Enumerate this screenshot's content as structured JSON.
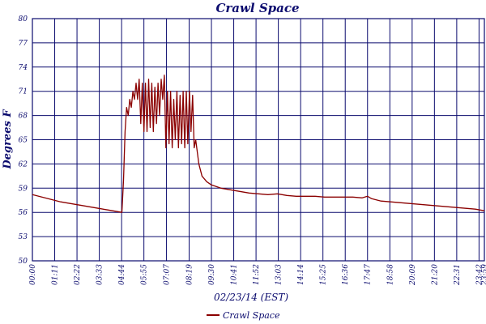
{
  "chart_data": {
    "type": "line",
    "title": "Crawl Space",
    "xlabel": "02/23/14 (EST)",
    "ylabel": "Degrees F",
    "ylim": [
      50,
      80
    ],
    "y_ticks": [
      50,
      53,
      56,
      59,
      62,
      65,
      68,
      71,
      74,
      77,
      80
    ],
    "x_ticks": [
      "00:00",
      "01:11",
      "02:22",
      "03:33",
      "04:44",
      "05:55",
      "07:07",
      "08:19",
      "09:30",
      "10:41",
      "11:52",
      "13:03",
      "14:14",
      "15:25",
      "16:36",
      "17:47",
      "18:58",
      "20:09",
      "21:20",
      "22:31",
      "23:42",
      "23:59"
    ],
    "grid": true,
    "legend": "bottom-center",
    "colors": {
      "series": "#8b0000",
      "grid": "#0b0b6e",
      "text": "#0b0b6e"
    },
    "series": [
      {
        "name": "Crawl Space",
        "points": [
          [
            "00:00",
            58.2
          ],
          [
            "00:30",
            57.9
          ],
          [
            "01:00",
            57.6
          ],
          [
            "01:30",
            57.3
          ],
          [
            "02:00",
            57.1
          ],
          [
            "02:30",
            56.9
          ],
          [
            "03:00",
            56.7
          ],
          [
            "03:30",
            56.5
          ],
          [
            "04:00",
            56.3
          ],
          [
            "04:30",
            56.1
          ],
          [
            "04:45",
            56.0
          ],
          [
            "04:50",
            60.0
          ],
          [
            "04:55",
            66.0
          ],
          [
            "05:00",
            69.0
          ],
          [
            "05:05",
            68.0
          ],
          [
            "05:10",
            70.0
          ],
          [
            "05:15",
            69.0
          ],
          [
            "05:20",
            71.0
          ],
          [
            "05:25",
            70.0
          ],
          [
            "05:30",
            72.0
          ],
          [
            "05:35",
            70.0
          ],
          [
            "05:40",
            72.5
          ],
          [
            "05:45",
            67.0
          ],
          [
            "05:50",
            72.0
          ],
          [
            "05:55",
            66.0
          ],
          [
            "06:00",
            72.0
          ],
          [
            "06:05",
            66.0
          ],
          [
            "06:10",
            72.5
          ],
          [
            "06:15",
            66.5
          ],
          [
            "06:20",
            72.0
          ],
          [
            "06:25",
            66.0
          ],
          [
            "06:30",
            71.5
          ],
          [
            "06:35",
            67.0
          ],
          [
            "06:40",
            72.0
          ],
          [
            "06:45",
            68.0
          ],
          [
            "06:50",
            72.5
          ],
          [
            "06:55",
            70.0
          ],
          [
            "07:00",
            73.0
          ],
          [
            "07:05",
            64.0
          ],
          [
            "07:10",
            71.0
          ],
          [
            "07:15",
            64.5
          ],
          [
            "07:20",
            71.0
          ],
          [
            "07:25",
            64.0
          ],
          [
            "07:30",
            70.0
          ],
          [
            "07:35",
            65.0
          ],
          [
            "07:40",
            71.0
          ],
          [
            "07:45",
            64.0
          ],
          [
            "07:50",
            70.5
          ],
          [
            "07:55",
            64.5
          ],
          [
            "08:00",
            71.0
          ],
          [
            "08:05",
            64.0
          ],
          [
            "08:10",
            71.0
          ],
          [
            "08:15",
            64.5
          ],
          [
            "08:20",
            71.0
          ],
          [
            "08:25",
            66.0
          ],
          [
            "08:30",
            70.5
          ],
          [
            "08:35",
            64.0
          ],
          [
            "08:40",
            65.0
          ],
          [
            "08:50",
            62.0
          ],
          [
            "09:00",
            60.5
          ],
          [
            "09:15",
            59.8
          ],
          [
            "09:30",
            59.4
          ],
          [
            "10:00",
            59.0
          ],
          [
            "10:30",
            58.8
          ],
          [
            "11:00",
            58.6
          ],
          [
            "11:30",
            58.4
          ],
          [
            "12:00",
            58.3
          ],
          [
            "12:30",
            58.2
          ],
          [
            "13:00",
            58.3
          ],
          [
            "13:30",
            58.1
          ],
          [
            "14:00",
            58.0
          ],
          [
            "14:30",
            58.0
          ],
          [
            "15:00",
            58.0
          ],
          [
            "15:30",
            57.9
          ],
          [
            "16:00",
            57.9
          ],
          [
            "16:30",
            57.9
          ],
          [
            "17:00",
            57.9
          ],
          [
            "17:30",
            57.8
          ],
          [
            "17:47",
            58.0
          ],
          [
            "18:00",
            57.7
          ],
          [
            "18:30",
            57.4
          ],
          [
            "19:00",
            57.3
          ],
          [
            "19:30",
            57.2
          ],
          [
            "20:00",
            57.1
          ],
          [
            "20:30",
            57.0
          ],
          [
            "21:00",
            56.9
          ],
          [
            "21:30",
            56.8
          ],
          [
            "22:00",
            56.7
          ],
          [
            "22:30",
            56.6
          ],
          [
            "23:00",
            56.5
          ],
          [
            "23:30",
            56.4
          ],
          [
            "23:59",
            56.2
          ]
        ]
      }
    ]
  }
}
